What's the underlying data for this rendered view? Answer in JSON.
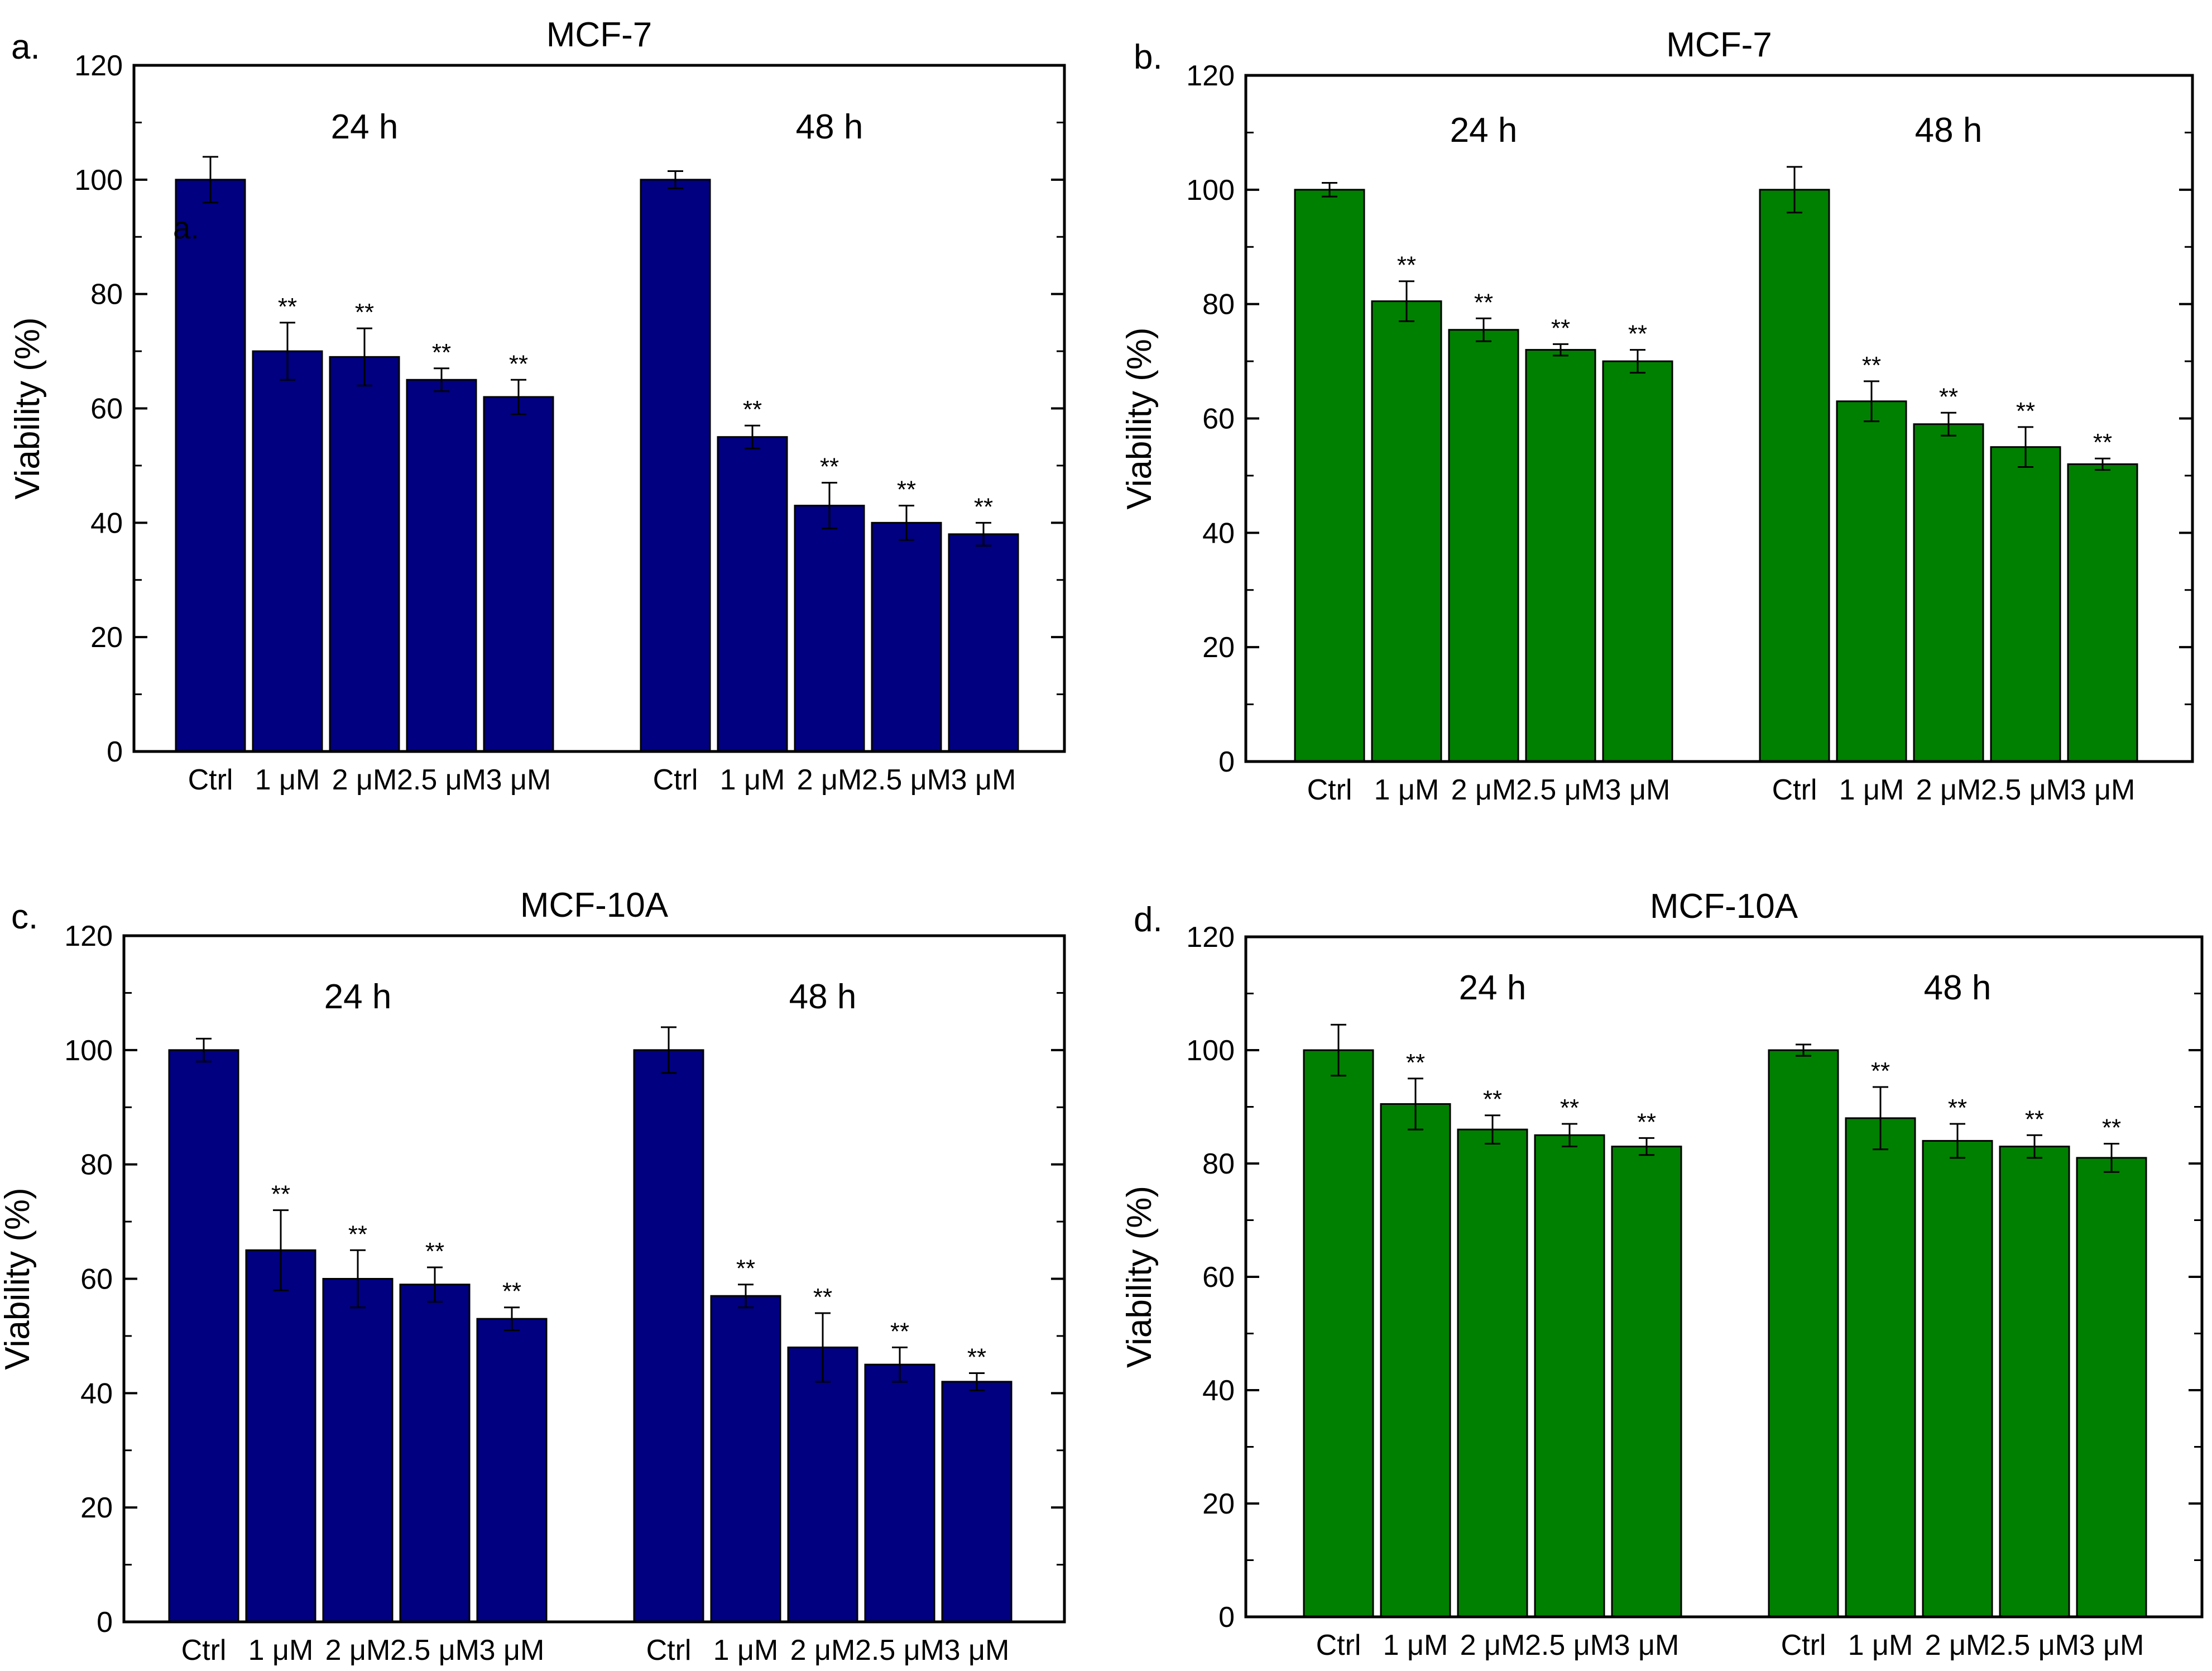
{
  "figure": {
    "colors": {
      "navy": "#000080",
      "green": "#008000",
      "bar_stroke": "#000000",
      "error_bar": "#000000"
    }
  },
  "chart_data": [
    {
      "panel_label": "a.",
      "inset_label": "a.",
      "type": "bar",
      "title": "MCF-7",
      "xlabel": "",
      "ylabel": "Viability (%)",
      "ylim": [
        0,
        120
      ],
      "yticks": [
        0,
        20,
        40,
        60,
        80,
        100,
        120
      ],
      "color": "navy",
      "significance": "**",
      "groups": [
        {
          "label": "24 h",
          "categories": [
            "Ctrl",
            "1 μM",
            "2 μM",
            "2.5 μM",
            "3 μM"
          ],
          "values": [
            100,
            70,
            69,
            65,
            62
          ],
          "errors": [
            4,
            5,
            5,
            2,
            3
          ],
          "sig": [
            false,
            true,
            true,
            true,
            true
          ]
        },
        {
          "label": "48 h",
          "categories": [
            "Ctrl",
            "1 μM",
            "2 μM",
            "2.5 μM",
            "3 μM"
          ],
          "values": [
            100,
            55,
            43,
            40,
            38
          ],
          "errors": [
            1.5,
            2,
            4,
            3,
            2
          ],
          "sig": [
            false,
            true,
            true,
            true,
            true
          ]
        }
      ]
    },
    {
      "panel_label": "b.",
      "type": "bar",
      "title": "MCF-7",
      "xlabel": "",
      "ylabel": "Viability (%)",
      "ylim": [
        0,
        120
      ],
      "yticks": [
        0,
        20,
        40,
        60,
        80,
        100,
        120
      ],
      "color": "green",
      "significance": "**",
      "groups": [
        {
          "label": "24 h",
          "categories": [
            "Ctrl",
            "1 μM",
            "2 μM",
            "2.5 μM",
            "3 μM"
          ],
          "values": [
            100,
            80.5,
            75.5,
            72,
            70
          ],
          "errors": [
            1.2,
            3.5,
            2,
            1,
            2
          ],
          "sig": [
            false,
            true,
            true,
            true,
            true
          ]
        },
        {
          "label": "48 h",
          "categories": [
            "Ctrl",
            "1 μM",
            "2 μM",
            "2.5 μM",
            "3 μM"
          ],
          "values": [
            100,
            63,
            59,
            55,
            52
          ],
          "errors": [
            4,
            3.5,
            2,
            3.5,
            1
          ],
          "sig": [
            false,
            true,
            true,
            true,
            true
          ]
        }
      ]
    },
    {
      "panel_label": "c.",
      "type": "bar",
      "title": "MCF-10A",
      "xlabel": "",
      "ylabel": "Viability (%)",
      "ylim": [
        0,
        120
      ],
      "yticks": [
        0,
        20,
        40,
        60,
        80,
        100,
        120
      ],
      "color": "navy",
      "significance": "**",
      "groups": [
        {
          "label": "24 h",
          "categories": [
            "Ctrl",
            "1 μM",
            "2 μM",
            "2.5 μM",
            "3 μM"
          ],
          "values": [
            100,
            65,
            60,
            59,
            53
          ],
          "errors": [
            2,
            7,
            5,
            3,
            2
          ],
          "sig": [
            false,
            true,
            true,
            true,
            true
          ]
        },
        {
          "label": "48 h",
          "categories": [
            "Ctrl",
            "1 μM",
            "2 μM",
            "2.5 μM",
            "3 μM"
          ],
          "values": [
            100,
            57,
            48,
            45,
            42
          ],
          "errors": [
            4,
            2,
            6,
            3,
            1.5
          ],
          "sig": [
            false,
            true,
            true,
            true,
            true
          ]
        }
      ]
    },
    {
      "panel_label": "d.",
      "type": "bar",
      "title": "MCF-10A",
      "xlabel": "",
      "ylabel": "Viability (%)",
      "ylim": [
        0,
        120
      ],
      "yticks": [
        0,
        20,
        40,
        60,
        80,
        100,
        120
      ],
      "color": "green",
      "significance": "**",
      "groups": [
        {
          "label": "24 h",
          "categories": [
            "Ctrl",
            "1 μM",
            "2 μM",
            "2.5 μM",
            "3 μM"
          ],
          "values": [
            100,
            90.5,
            86,
            85,
            83
          ],
          "errors": [
            4.5,
            4.5,
            2.5,
            2,
            1.5
          ],
          "sig": [
            false,
            true,
            true,
            true,
            true
          ]
        },
        {
          "label": "48 h",
          "categories": [
            "Ctrl",
            "1 μM",
            "2 μM",
            "2.5 μM",
            "3 μM"
          ],
          "values": [
            100,
            88,
            84,
            83,
            81
          ],
          "errors": [
            1,
            5.5,
            3,
            2,
            2.5
          ],
          "sig": [
            false,
            true,
            true,
            true,
            true
          ]
        }
      ]
    }
  ]
}
